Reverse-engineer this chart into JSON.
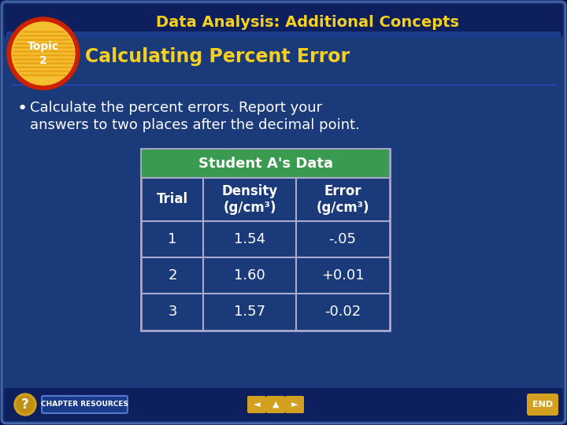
{
  "title_header": "Data Analysis: Additional Concepts",
  "subtitle": "Calculating Percent Error",
  "topic_label": "Topic\n2",
  "bullet_text_line1": "Calculate the percent errors. Report your",
  "bullet_text_line2": "answers to two places after the decimal point.",
  "table_header": "Student A's Data",
  "col_headers": [
    "Trial",
    "Density\n(g/cm³)",
    "Error\n(g/cm³)"
  ],
  "rows": [
    [
      "1",
      "1.54",
      "-.05"
    ],
    [
      "2",
      "1.60",
      "+0.01"
    ],
    [
      "3",
      "1.57",
      "-0.02"
    ]
  ],
  "bg_color": "#1a3a7a",
  "bg_color_outer": "#0a1a50",
  "header_bar_color": "#1a3a8a",
  "title_color": "#f5d020",
  "subtitle_color": "#f5d020",
  "bullet_color": "#ffffff",
  "table_header_bg": "#3a9a50",
  "table_header_text": "#ffffff",
  "table_col_header_text": "#ffffff",
  "table_cell_bg": "#1a3a7a",
  "table_cell_text": "#ffffff",
  "table_border_color": "#aaaacc",
  "topic_inner_color": "#f5c030",
  "topic_outer_color": "#cc2200",
  "topic_text_color": "#ffffff",
  "bottom_bg": "#0a1a50",
  "nav_circle_color": "#d4a020",
  "chapter_btn_bg": "#1a3a8a",
  "chapter_btn_border": "#5577cc"
}
